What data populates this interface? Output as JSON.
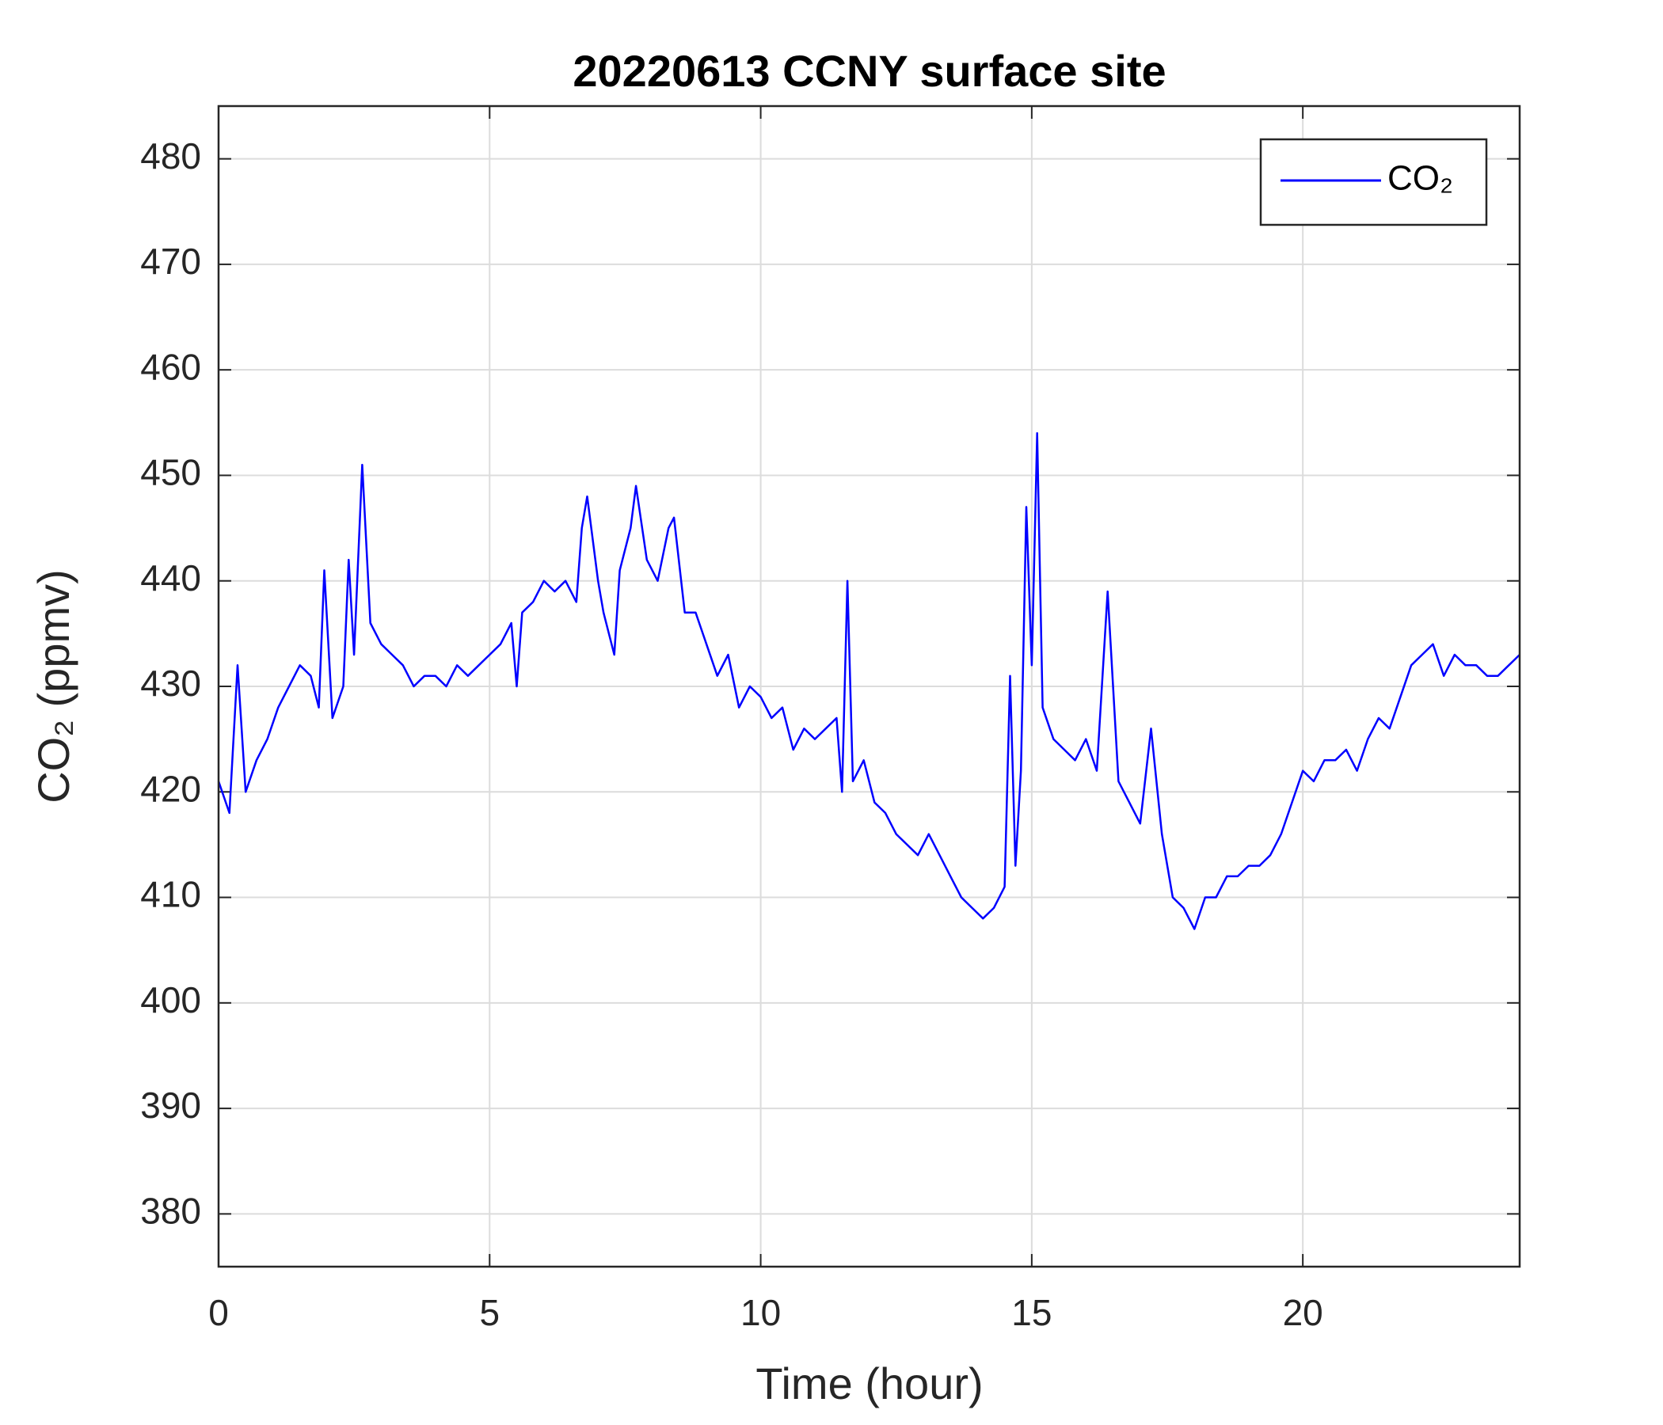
{
  "chart_data": {
    "type": "line",
    "title": "20220613 CCNY surface site",
    "xlabel": "Time (hour)",
    "ylabel": "CO₂ (ppmv)",
    "xlim": [
      0,
      24
    ],
    "xticks": [
      0,
      5,
      10,
      15,
      20
    ],
    "ylim": [
      375,
      485
    ],
    "yticks": [
      380,
      390,
      400,
      410,
      420,
      430,
      440,
      450,
      460,
      470,
      480
    ],
    "grid": true,
    "legend": "northeast",
    "series": [
      {
        "name": "CO₂",
        "color": "#0000ff",
        "x": [
          0,
          0.2,
          0.35,
          0.5,
          0.7,
          0.9,
          1.1,
          1.3,
          1.5,
          1.7,
          1.85,
          1.95,
          2.1,
          2.3,
          2.4,
          2.5,
          2.65,
          2.8,
          3.0,
          3.2,
          3.4,
          3.6,
          3.8,
          4.0,
          4.2,
          4.4,
          4.6,
          4.8,
          5.0,
          5.2,
          5.4,
          5.5,
          5.6,
          5.8,
          6.0,
          6.2,
          6.4,
          6.6,
          6.7,
          6.8,
          7.0,
          7.1,
          7.3,
          7.4,
          7.6,
          7.7,
          7.9,
          8.1,
          8.3,
          8.4,
          8.6,
          8.8,
          9.0,
          9.2,
          9.4,
          9.6,
          9.8,
          10.0,
          10.2,
          10.4,
          10.6,
          10.8,
          11.0,
          11.2,
          11.4,
          11.5,
          11.6,
          11.7,
          11.9,
          12.1,
          12.3,
          12.5,
          12.7,
          12.9,
          13.1,
          13.3,
          13.5,
          13.7,
          13.9,
          14.1,
          14.3,
          14.5,
          14.6,
          14.7,
          14.8,
          14.9,
          15.0,
          15.1,
          15.2,
          15.4,
          15.6,
          15.8,
          16.0,
          16.2,
          16.4,
          16.6,
          16.8,
          17.0,
          17.2,
          17.4,
          17.6,
          17.8,
          18.0,
          18.2,
          18.4,
          18.6,
          18.8,
          19.0,
          19.2,
          19.4,
          19.6,
          19.8,
          20.0,
          20.2,
          20.4,
          20.6,
          20.8,
          21.0,
          21.2,
          21.4,
          21.6,
          21.8,
          22.0,
          22.2,
          22.4,
          22.6,
          22.8,
          23.0,
          23.2,
          23.4,
          23.6,
          23.8,
          24.0
        ],
        "values": [
          421,
          418,
          432,
          420,
          423,
          425,
          428,
          430,
          432,
          431,
          428,
          441,
          427,
          430,
          442,
          433,
          451,
          436,
          434,
          433,
          432,
          430,
          431,
          431,
          430,
          432,
          431,
          432,
          433,
          434,
          436,
          430,
          437,
          438,
          440,
          439,
          440,
          438,
          445,
          448,
          440,
          437,
          433,
          441,
          445,
          449,
          442,
          440,
          445,
          446,
          437,
          437,
          434,
          431,
          433,
          428,
          430,
          429,
          427,
          428,
          424,
          426,
          425,
          426,
          427,
          420,
          440,
          421,
          423,
          419,
          418,
          416,
          415,
          414,
          416,
          414,
          412,
          410,
          409,
          408,
          409,
          411,
          431,
          413,
          422,
          447,
          432,
          454,
          428,
          425,
          424,
          423,
          425,
          422,
          439,
          421,
          419,
          417,
          426,
          416,
          410,
          409,
          407,
          410,
          410,
          412,
          412,
          413,
          413,
          414,
          416,
          419,
          422,
          421,
          423,
          423,
          424,
          422,
          425,
          427,
          426,
          429,
          432,
          433,
          434,
          431,
          433,
          432,
          432,
          431,
          431,
          432,
          433
        ]
      }
    ]
  }
}
